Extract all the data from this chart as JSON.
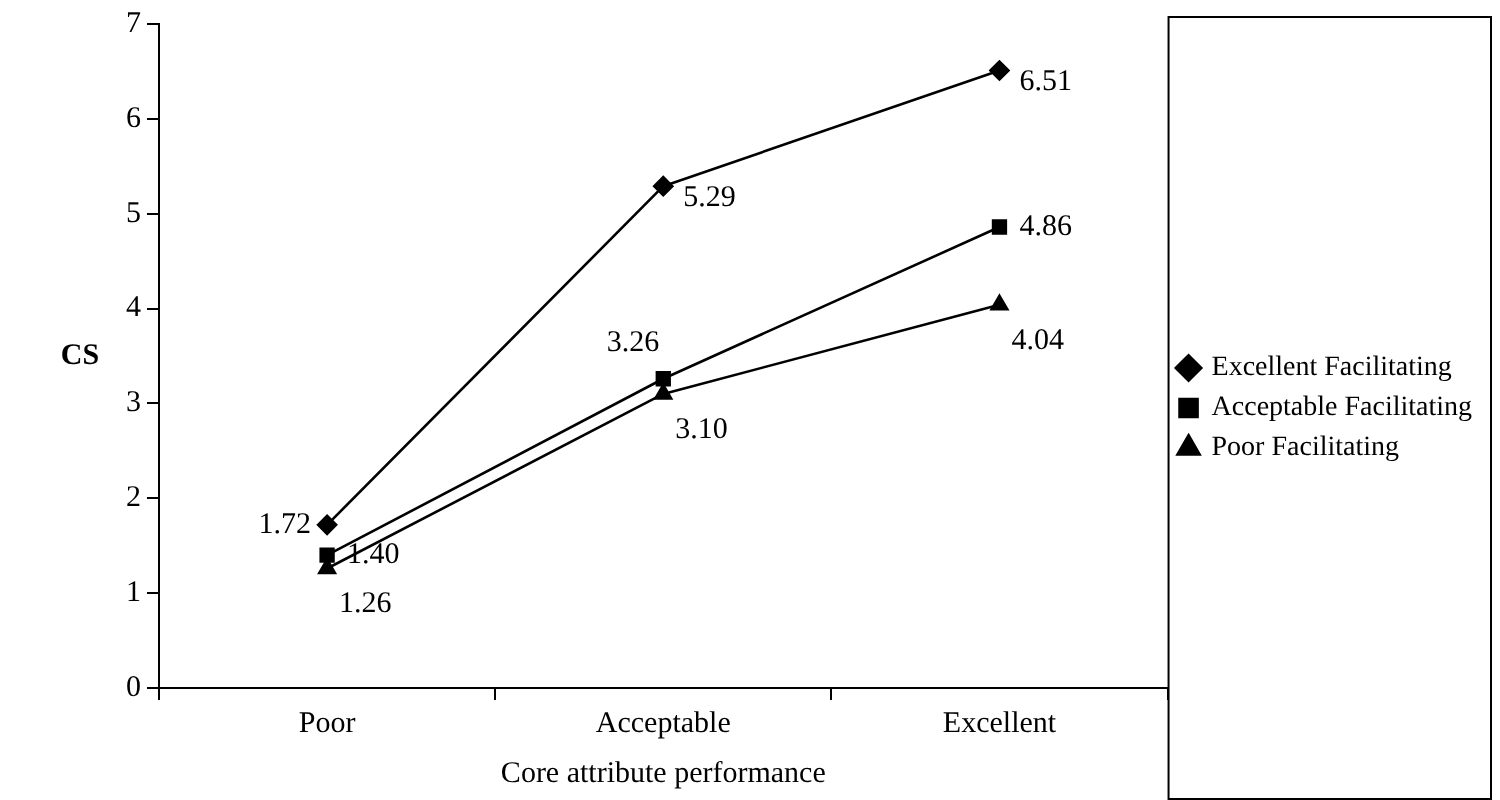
{
  "chart_data": {
    "type": "line",
    "xlabel": "Core attribute performance",
    "ylabel": "CS",
    "categories": [
      "Poor",
      "Acceptable",
      "Excellent"
    ],
    "series": [
      {
        "name": "Excellent Facilitating",
        "color": "#000000",
        "marker": "diamond",
        "values": [
          1.72,
          5.29,
          6.51
        ]
      },
      {
        "name": "Acceptable Facilitating",
        "color": "#000000",
        "marker": "square",
        "values": [
          1.4,
          3.26,
          4.86
        ],
        "value_labels": [
          "1.40",
          "3.26",
          "4.86"
        ]
      },
      {
        "name": "Poor Facilitating",
        "color": "#000000",
        "marker": "triangle",
        "values": [
          1.26,
          3.1,
          4.04
        ],
        "value_labels": [
          "1.26",
          "3.10",
          "4.04"
        ]
      }
    ],
    "ylim": [
      0,
      7
    ],
    "yticks": [
      0,
      1,
      2,
      3,
      4,
      5,
      6,
      7
    ],
    "grid": false,
    "legend": "right",
    "data_labels": true,
    "line_style": "solid"
  }
}
